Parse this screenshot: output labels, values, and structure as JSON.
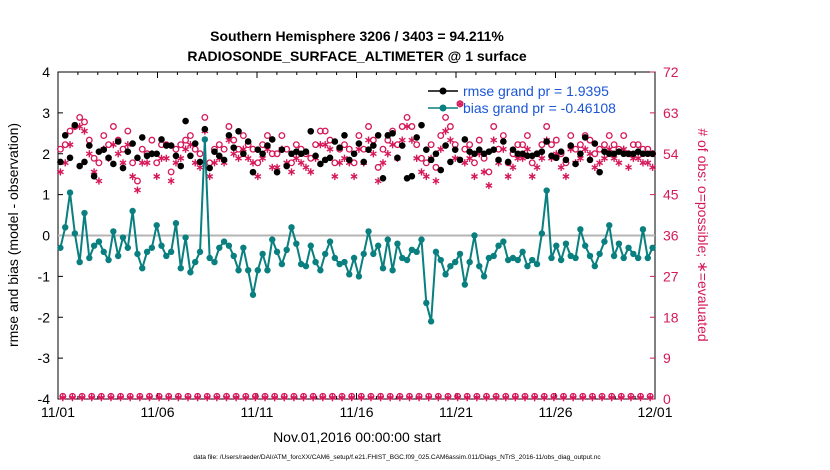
{
  "chart_data": {
    "type": "line",
    "title_line1": "Southern Hemisphere 3206 / 3403 = 94.211%",
    "title_line2": "RADIOSONDE_SURFACE_ALTIMETER @ 1 surface",
    "xlabel": "Nov.01,2016 00:00:00 start",
    "ylabel_left": "rmse and bias (model - observation)",
    "ylabel_right": "# of obs: o=possible; ∗=evaluated",
    "footer": "data file: /Users/raeder/DAI/ATM_forcXX/CAM6_setup/f.e21.FHIST_BGC.f09_025.CAM6assim.011/Diags_NTrS_2016-11/obs_diag_output.nc",
    "x_ticks": [
      "11/01",
      "11/06",
      "11/11",
      "11/16",
      "11/21",
      "11/26",
      "12/01"
    ],
    "x_range_days": [
      0,
      30
    ],
    "ylim_left": [
      -4,
      4
    ],
    "y_ticks_left": [
      "-4",
      "-3",
      "-2",
      "-1",
      "0",
      "1",
      "2",
      "3",
      "4"
    ],
    "ylim_right": [
      0,
      72
    ],
    "y_ticks_right": [
      "0",
      "9",
      "18",
      "27",
      "36",
      "45",
      "54",
      "63",
      "72"
    ],
    "colors": {
      "rmse": "#000000",
      "bias": "#0a7f7f",
      "counts": "#d6185a",
      "zero_line": "#b4b4b4",
      "legend_text": "#1a56d6"
    },
    "legend": [
      "rmse grand pr = 1.9395",
      "bias grand pr = -0.46108"
    ],
    "series": [
      {
        "name": "rmse",
        "values": [
          1.8,
          2.45,
          1.9,
          2.7,
          1.7,
          1.8,
          2.2,
          1.45,
          2.05,
          2.1,
          1.9,
          1.75,
          2.3,
          1.65,
          2.05,
          2.25,
          1.9,
          2.4,
          1.95,
          2.0,
          2.0,
          2.35,
          2.2,
          2.2,
          1.95,
          1.7,
          2.8,
          1.95,
          2.25,
          1.8,
          2.6,
          1.65,
          2.05,
          1.95,
          1.85,
          2.45,
          2.15,
          2.55,
          2.0,
          2.3,
          1.55,
          2.1,
          2.0,
          2.2,
          2.35,
          1.55,
          2.1,
          1.7,
          2.0,
          2.05,
          2.0,
          2.05,
          2.55,
          1.95,
          1.75,
          1.85,
          1.9,
          2.3,
          2.15,
          2.45,
          1.85,
          2.0,
          2.25,
          1.8,
          2.1,
          2.2,
          2.45,
          1.4,
          2.45,
          2.5,
          1.9,
          2.2,
          1.4,
          1.45,
          2.4,
          2.7,
          2.1,
          1.85,
          2.0,
          1.6,
          2.2,
          1.8,
          2.1,
          1.85,
          2.35,
          2.05,
          2.0,
          2.1,
          2.0,
          2.05,
          2.1,
          1.85,
          2.3,
          1.8,
          2.1,
          2.0,
          2.0,
          1.95,
          1.95,
          2.0,
          2.05,
          2.3,
          1.95,
          1.9,
          2.05,
          1.85,
          2.2,
          1.75,
          2.0,
          2.4,
          1.85,
          2.25,
          1.55,
          2.05,
          2.0,
          2.0,
          2.05,
          2.0,
          2.0,
          2.0,
          2.05,
          2.0,
          2.0,
          2.0
        ]
      },
      {
        "name": "bias",
        "values": [
          -0.3,
          0.2,
          1.05,
          0.05,
          -0.65,
          0.55,
          -0.55,
          -0.25,
          -0.15,
          -0.4,
          -0.6,
          0.1,
          -0.5,
          -0.05,
          -0.3,
          0.6,
          -0.45,
          -0.8,
          -0.4,
          -0.3,
          0.25,
          -0.25,
          -0.5,
          -0.4,
          0.3,
          -0.8,
          -0.05,
          -0.9,
          -0.65,
          -0.4,
          2.35,
          -0.55,
          -0.65,
          -0.3,
          -0.15,
          -0.25,
          -0.5,
          -0.85,
          -0.3,
          -0.85,
          -1.45,
          -0.85,
          -0.45,
          -0.85,
          -0.1,
          -0.4,
          -0.7,
          -0.35,
          0.2,
          -0.2,
          -0.7,
          -0.75,
          -0.25,
          -0.65,
          -0.85,
          -0.45,
          -0.15,
          -0.55,
          -0.7,
          -0.65,
          -0.95,
          -0.55,
          -1.0,
          -0.45,
          0.1,
          -0.45,
          -0.25,
          -0.8,
          -0.1,
          -0.85,
          -0.2,
          -0.55,
          -0.6,
          -0.35,
          -0.4,
          -0.1,
          -1.65,
          -2.1,
          -0.4,
          -0.6,
          -0.95,
          -0.75,
          -0.65,
          -0.45,
          -1.2,
          -0.65,
          0.0,
          -0.75,
          -1.0,
          -0.55,
          -0.5,
          -0.25,
          -0.15,
          -0.6,
          -0.55,
          -0.6,
          -0.4,
          -0.75,
          -0.6,
          -0.7,
          0.05,
          1.1,
          -0.55,
          -0.25,
          -0.6,
          -0.2,
          -0.5,
          -0.55,
          0.15,
          -0.25,
          -0.5,
          -0.75,
          -0.45,
          -0.15,
          0.25,
          -0.5,
          -0.2,
          -0.55,
          -0.3,
          -0.45,
          -0.55,
          0.15,
          -0.55,
          -0.3
        ]
      },
      {
        "name": "possible",
        "values": [
          55,
          56,
          59,
          60,
          62,
          61,
          57,
          53,
          52,
          58,
          56,
          60,
          57,
          55,
          59,
          52,
          48,
          55,
          54,
          57,
          52,
          56,
          56,
          50,
          55,
          56,
          57,
          58,
          55,
          54,
          62,
          52,
          55,
          56,
          55,
          60,
          57,
          55,
          58,
          56,
          55,
          52,
          56,
          58,
          54,
          54,
          58,
          55,
          52,
          56,
          55,
          54,
          53,
          56,
          59,
          59,
          57,
          52,
          55,
          56,
          55,
          52,
          58,
          55,
          60,
          57,
          51,
          55,
          57,
          59,
          56,
          60,
          62,
          60,
          56,
          53,
          52,
          56,
          51,
          58,
          62,
          60,
          56,
          65,
          55,
          56,
          52,
          57,
          53,
          50,
          60,
          55,
          58,
          52,
          54,
          56,
          56,
          58,
          52,
          54,
          56,
          60,
          56,
          57,
          54,
          52,
          58,
          55,
          56,
          58,
          57,
          54,
          55,
          56,
          58,
          56,
          55,
          58,
          54,
          56,
          56,
          55,
          55,
          54
        ]
      },
      {
        "name": "evaluated",
        "values": [
          50,
          52,
          56,
          60,
          60,
          59,
          54,
          50,
          48,
          55,
          53,
          56,
          54,
          52,
          56,
          49,
          46,
          52,
          52,
          54,
          49,
          53,
          53,
          48,
          52,
          53,
          55,
          56,
          52,
          51,
          59,
          49,
          52,
          53,
          52,
          57,
          54,
          53,
          55,
          53,
          52,
          49,
          53,
          55,
          51,
          51,
          55,
          52,
          50,
          53,
          52,
          51,
          50,
          53,
          56,
          56,
          55,
          49,
          52,
          53,
          52,
          49,
          55,
          52,
          57,
          54,
          48,
          52,
          54,
          56,
          53,
          57,
          60,
          57,
          53,
          50,
          49,
          53,
          48,
          55,
          59,
          57,
          53,
          65,
          52,
          53,
          49,
          54,
          50,
          47,
          57,
          52,
          55,
          49,
          51,
          53,
          53,
          55,
          49,
          51,
          53,
          57,
          53,
          54,
          51,
          49,
          55,
          52,
          53,
          55,
          54,
          51,
          52,
          53,
          55,
          53,
          52,
          55,
          51,
          53,
          53,
          52,
          52,
          51
        ]
      }
    ]
  }
}
